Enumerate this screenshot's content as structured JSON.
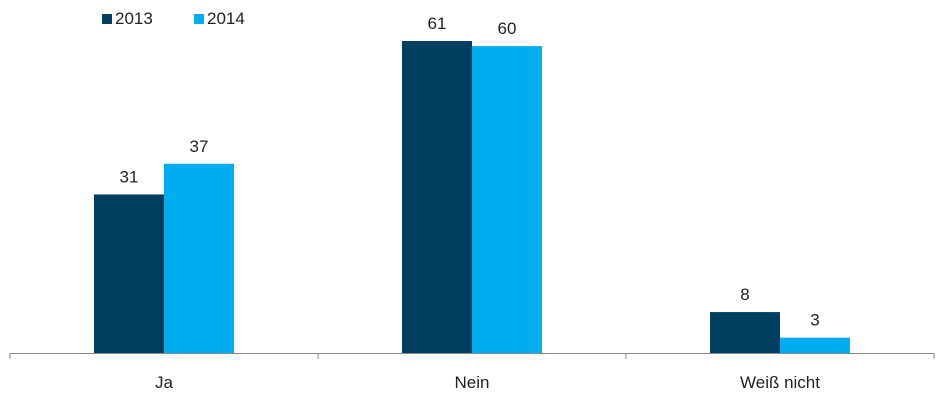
{
  "chart_data": {
    "type": "bar",
    "categories": [
      "Ja",
      "Nein",
      "Weiß nicht"
    ],
    "series": [
      {
        "name": "2013",
        "values": [
          31,
          61,
          8
        ],
        "color": "#003f5f"
      },
      {
        "name": "2014",
        "values": [
          37,
          60,
          3
        ],
        "color": "#00aeef"
      }
    ],
    "ylim": [
      0,
      61
    ],
    "grid": false,
    "legend": "top-left",
    "data_labels": true
  }
}
